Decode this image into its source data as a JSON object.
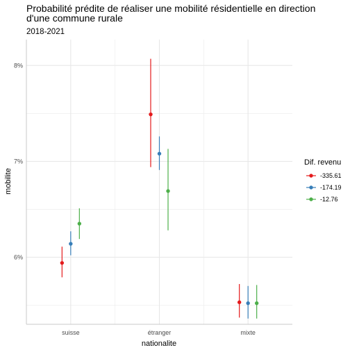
{
  "chart_data": {
    "type": "scatter",
    "title_lines": [
      "Probabilité prédite de réaliser une mobilité résidentielle en direction",
      "d'une commune rurale"
    ],
    "subtitle": "2018-2021",
    "xlabel": "nationalite",
    "ylabel": "mobilite",
    "categories": [
      "suisse",
      "étranger",
      "mixte"
    ],
    "yticks": [
      {
        "value": 6,
        "label": "6%"
      },
      {
        "value": 7,
        "label": "7%"
      },
      {
        "value": 8,
        "label": "8%"
      }
    ],
    "ylim": [
      5.3,
      8.27
    ],
    "grid": true,
    "legend": {
      "title": "Dif. revenu",
      "placement": "right"
    },
    "series": [
      {
        "name": "-335.61",
        "color": "#e41a1c",
        "values": [
          5.94,
          7.49,
          5.53
        ],
        "lower": [
          5.79,
          6.94,
          5.37
        ],
        "upper": [
          6.11,
          8.07,
          5.72
        ]
      },
      {
        "name": "-174.19",
        "color": "#377eb8",
        "values": [
          6.14,
          7.08,
          5.52
        ],
        "lower": [
          6.02,
          6.91,
          5.36
        ],
        "upper": [
          6.27,
          7.26,
          5.7
        ]
      },
      {
        "name": "-12.76",
        "color": "#4daf4a",
        "values": [
          6.35,
          6.69,
          5.52
        ],
        "lower": [
          6.19,
          6.28,
          5.36
        ],
        "upper": [
          6.51,
          7.13,
          5.71
        ]
      }
    ]
  }
}
